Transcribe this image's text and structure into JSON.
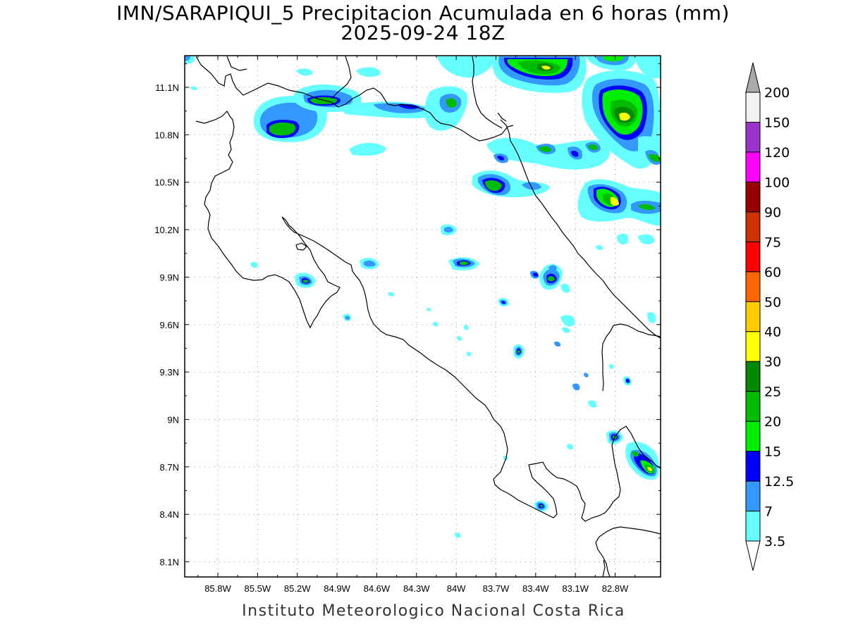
{
  "title": {
    "line1": "IMN/SARAPIQUI_5 Precipitacion Acumulada en 6 horas (mm)",
    "line2": "2025-09-24 18Z"
  },
  "footer": "Instituto Meteorologico Nacional Costa Rica",
  "map": {
    "lon_labels": [
      "85.8W",
      "85.5W",
      "85.2W",
      "84.9W",
      "84.6W",
      "84.3W",
      "84W",
      "83.7W",
      "83.4W",
      "83.1W",
      "82.8W"
    ],
    "lat_labels": [
      "11.1N",
      "10.8N",
      "10.5N",
      "10.2N",
      "9.9N",
      "9.6N",
      "9.3N",
      "9N",
      "8.7N",
      "8.4N",
      "8.1N"
    ],
    "grid": true
  },
  "legend": {
    "levels": [
      {
        "label": "200",
        "color": "#f2f2f2"
      },
      {
        "label": "150",
        "color": "#9933cc"
      },
      {
        "label": "120",
        "color": "#ff00ff"
      },
      {
        "label": "100",
        "color": "#990000"
      },
      {
        "label": "90",
        "color": "#cc3300"
      },
      {
        "label": "75",
        "color": "#ff0000"
      },
      {
        "label": "60",
        "color": "#ff6600"
      },
      {
        "label": "50",
        "color": "#ffcc00"
      },
      {
        "label": "40",
        "color": "#ffff00"
      },
      {
        "label": "30",
        "color": "#008800"
      },
      {
        "label": "25",
        "color": "#00bb00"
      },
      {
        "label": "20",
        "color": "#00ee00"
      },
      {
        "label": "15",
        "color": "#0000ff"
      },
      {
        "label": "12.5",
        "color": "#3399ff"
      },
      {
        "label": "7",
        "color": "#66ffff"
      },
      {
        "label": "3.5",
        "color": "#ffffff"
      }
    ],
    "top_arrow_color": "#aaaaaa",
    "bottom_arrow_color": "#ffffff"
  },
  "colors": {
    "c3_5": "#66ffff",
    "c7": "#3399ff",
    "c12_5": "#0000ff",
    "c15": "#00ee00",
    "c20": "#00bb00",
    "c30": "#ffff00"
  }
}
